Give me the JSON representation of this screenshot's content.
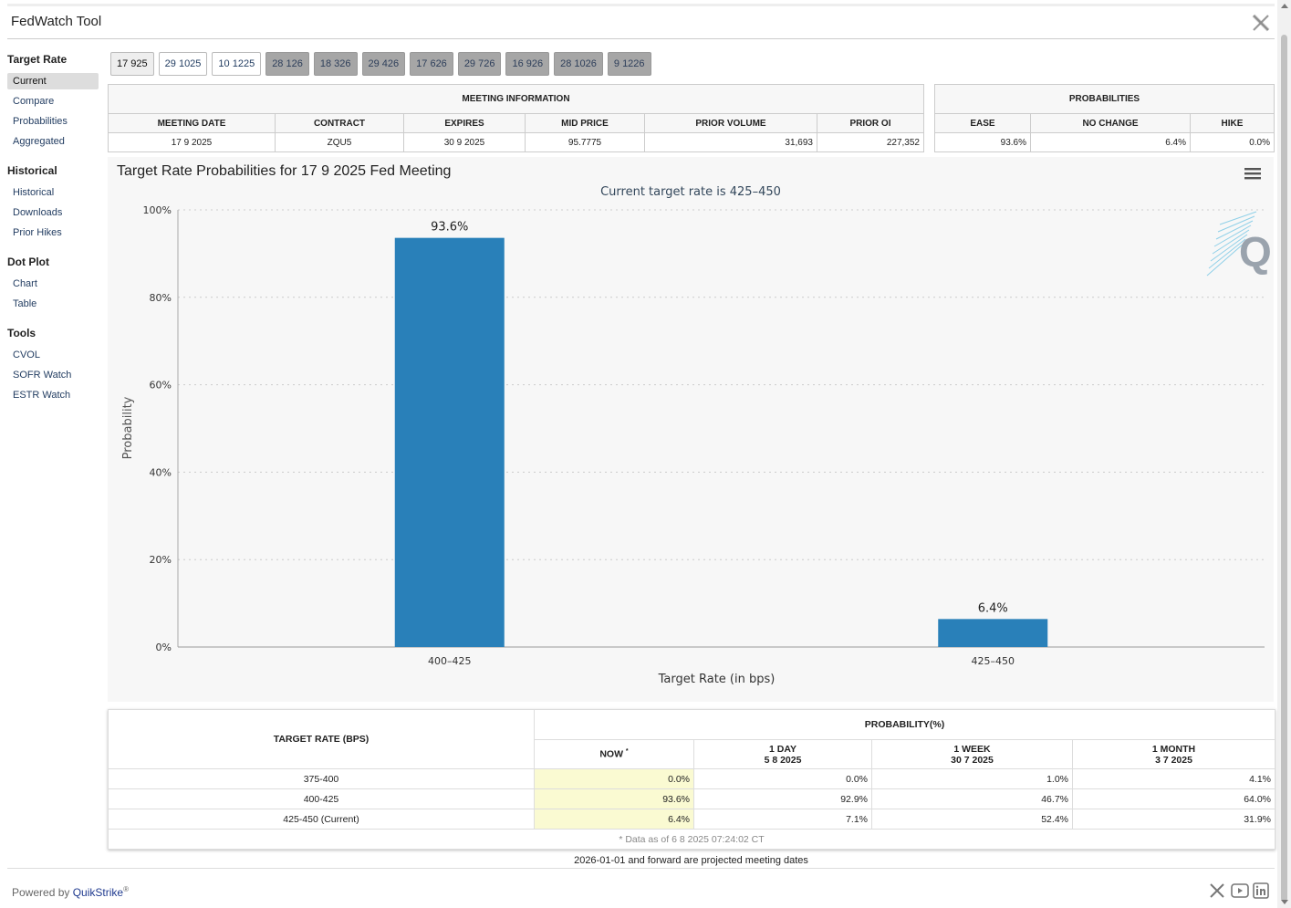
{
  "app": {
    "title": "FedWatch Tool"
  },
  "sidebar": {
    "sections": [
      {
        "title": "Target Rate",
        "items": [
          "Current",
          "Compare",
          "Probabilities",
          "Aggregated"
        ]
      },
      {
        "title": "Historical",
        "items": [
          "Historical",
          "Downloads",
          "Prior Hikes"
        ]
      },
      {
        "title": "Dot Plot",
        "items": [
          "Chart",
          "Table"
        ]
      },
      {
        "title": "Tools",
        "items": [
          "CVOL",
          "SOFR Watch",
          "ESTR Watch"
        ]
      }
    ],
    "active_item": "Current"
  },
  "meeting_tabs": [
    "17 925",
    "29 1025",
    "10 1225",
    "28 126",
    "18 326",
    "29 426",
    "17 626",
    "29 726",
    "16 926",
    "28 1026",
    "9 1226"
  ],
  "meeting_info": {
    "heading": "MEETING INFORMATION",
    "headers": [
      "MEETING DATE",
      "CONTRACT",
      "EXPIRES",
      "MID PRICE",
      "PRIOR VOLUME",
      "PRIOR OI"
    ],
    "row": [
      "17 9 2025",
      "ZQU5",
      "30 9 2025",
      "95.7775",
      "31,693",
      "227,352"
    ]
  },
  "probabilities": {
    "heading": "PROBABILITIES",
    "headers": [
      "EASE",
      "NO CHANGE",
      "HIKE"
    ],
    "row": [
      "93.6%",
      "6.4%",
      "0.0%"
    ]
  },
  "chart": {
    "title": "Target Rate Probabilities for 17 9 2025 Fed Meeting",
    "subtitle": "Current target rate is 425–450",
    "watermark": "Q"
  },
  "chart_data": {
    "type": "bar",
    "title": "Target Rate Probabilities for 17 9 2025 Fed Meeting",
    "subtitle": "Current target rate is 425–450",
    "categories": [
      "400–425",
      "425–450"
    ],
    "values": [
      93.6,
      6.4
    ],
    "data_labels": [
      "93.6%",
      "6.4%"
    ],
    "xlabel": "Target Rate (in bps)",
    "ylabel": "Probability",
    "ylim": [
      0,
      100
    ],
    "yticks": [
      "0%",
      "20%",
      "40%",
      "60%",
      "80%",
      "100%"
    ],
    "grid": true,
    "color": "#2980b9"
  },
  "prob_table": {
    "target_header": "TARGET RATE (BPS)",
    "prob_header": "PROBABILITY(%)",
    "col_now": "NOW",
    "col_now_mark": "*",
    "col_day": "1 DAY",
    "col_day_date": "5 8 2025",
    "col_week": "1 WEEK",
    "col_week_date": "30 7 2025",
    "col_month": "1 MONTH",
    "col_month_date": "3 7 2025",
    "rows": [
      [
        "375-400",
        "0.0%",
        "0.0%",
        "1.0%",
        "4.1%"
      ],
      [
        "400-425",
        "93.6%",
        "92.9%",
        "46.7%",
        "64.0%"
      ],
      [
        "425-450 (Current)",
        "6.4%",
        "7.1%",
        "52.4%",
        "31.9%"
      ]
    ],
    "note": "* Data as of 6 8 2025 07:24:02 CT"
  },
  "footnote": "2026-01-01 and forward are projected meeting dates",
  "footer": {
    "powered_by": "Powered by",
    "brand": "QuikStrike",
    "reg": "®"
  }
}
